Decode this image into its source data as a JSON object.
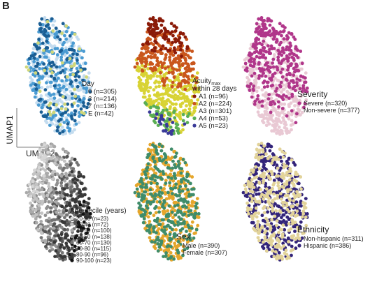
{
  "figure": {
    "panel_letter": "B",
    "axis_x_label": "UMAP2",
    "axis_y_label": "UMAP1"
  },
  "chart_data": [
    {
      "type": "scatter",
      "id": "day",
      "title": "Day",
      "title_sub": "",
      "title_line2": "",
      "title_size": "small",
      "series": [
        {
          "name": "0 (n=305)",
          "color": "#c4dcef",
          "n": 305
        },
        {
          "name": "3 (n=214)",
          "color": "#4a9bd2",
          "n": 214
        },
        {
          "name": "7 (n=136)",
          "color": "#1a5e94",
          "n": 136
        },
        {
          "name": "E (n=42)",
          "color": "#cfd77a",
          "n": 42
        }
      ]
    },
    {
      "type": "scatter",
      "id": "acuity",
      "title": "Acuity",
      "title_sub": "max",
      "title_line2": "within 28 days",
      "title_size": "small",
      "series": [
        {
          "name": "A1 (n=96)",
          "color": "#8a1a08",
          "n": 96
        },
        {
          "name": "A2 (n=224)",
          "color": "#c9561c",
          "n": 224
        },
        {
          "name": "A3 (n=301)",
          "color": "#d8d335",
          "n": 301
        },
        {
          "name": "A4 (n=53)",
          "color": "#5aae54",
          "n": 53
        },
        {
          "name": "A5 (n=23)",
          "color": "#3a3a98",
          "n": 23
        }
      ]
    },
    {
      "type": "scatter",
      "id": "severity",
      "title": "Severity",
      "title_sub": "",
      "title_line2": "",
      "title_size": "large",
      "series": [
        {
          "name": "Severe (n=320)",
          "color": "#b0368a",
          "n": 320
        },
        {
          "name": "Non-severe (n=377)",
          "color": "#e9c9d4",
          "n": 377
        }
      ]
    },
    {
      "type": "scatter",
      "id": "age",
      "title": "Age decile (years)",
      "title_sub": "",
      "title_line2": "",
      "title_size": "small",
      "series": [
        {
          "name": "20-30 (n=23)",
          "color": "#d6d6d6",
          "n": 23
        },
        {
          "name": "30-40 (n=72)",
          "color": "#c3c3c3",
          "n": 72
        },
        {
          "name": "40-50 (n=100)",
          "color": "#aaaaaa",
          "n": 100
        },
        {
          "name": "50-60 (n=138)",
          "color": "#909090",
          "n": 138
        },
        {
          "name": "60-70 (n=130)",
          "color": "#747474",
          "n": 130
        },
        {
          "name": "70-80 (n=115)",
          "color": "#565656",
          "n": 115
        },
        {
          "name": "80-90 (n=96)",
          "color": "#383838",
          "n": 96
        },
        {
          "name": "90-100 (n=23)",
          "color": "#111111",
          "n": 23
        }
      ]
    },
    {
      "type": "scatter",
      "id": "sex",
      "title": "Sex",
      "title_sub": "",
      "title_line2": "",
      "title_size": "large",
      "series": [
        {
          "name": "Male (n=390)",
          "color": "#e5a62c",
          "n": 390
        },
        {
          "name": "Female (n=307)",
          "color": "#3f8c6a",
          "n": 307
        }
      ]
    },
    {
      "type": "scatter",
      "id": "ethnicity",
      "title": "Ethnicity",
      "title_sub": "",
      "title_line2": "",
      "title_size": "large",
      "series": [
        {
          "name": "Non-hispanic (n=311)",
          "color": "#e2d39a",
          "n": 311
        },
        {
          "name": "Hispanic (n=386)",
          "color": "#33247a",
          "n": 386
        }
      ]
    }
  ]
}
